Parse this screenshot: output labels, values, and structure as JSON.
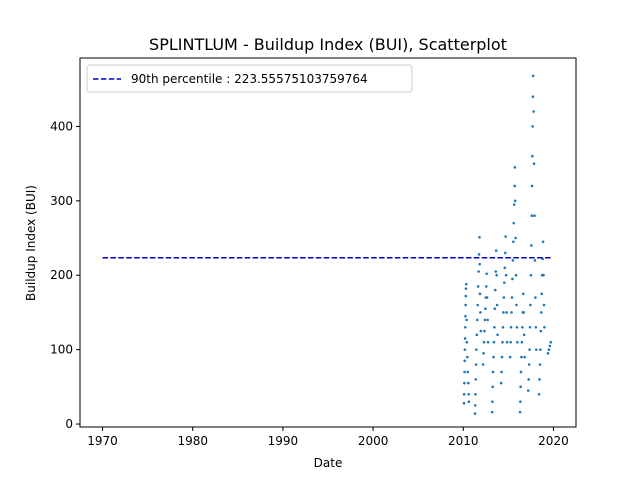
{
  "chart_data": {
    "type": "scatter",
    "title": "SPLINTLUM - Buildup Index (BUI), Scatterplot",
    "xlabel": "Date",
    "ylabel": "Buildup Index (BUI)",
    "xlim": [
      1967.5,
      2022.5
    ],
    "ylim": [
      -4,
      492
    ],
    "xticks": [
      1970,
      1980,
      1990,
      2000,
      2010,
      2020
    ],
    "yticks": [
      0,
      100,
      200,
      300,
      400
    ],
    "grid": false,
    "legend_position": "top-left",
    "colors": {
      "points": "#1f77b4",
      "reference_line": "#0000cc"
    },
    "reference_line": {
      "label": "90th percentile : 223.55575103759764",
      "value": 223.55575103759764,
      "x_range": [
        1970,
        2019.8
      ],
      "style": "dashed"
    },
    "series": [
      {
        "points": [
          [
            2010.08,
            28
          ],
          [
            2010.1,
            40
          ],
          [
            2010.12,
            55
          ],
          [
            2010.14,
            70
          ],
          [
            2010.16,
            85
          ],
          [
            2010.18,
            100
          ],
          [
            2010.2,
            115
          ],
          [
            2010.22,
            130
          ],
          [
            2010.24,
            145
          ],
          [
            2010.26,
            160
          ],
          [
            2010.28,
            172
          ],
          [
            2010.3,
            182
          ],
          [
            2010.33,
            188
          ],
          [
            2010.37,
            140
          ],
          [
            2010.4,
            110
          ],
          [
            2010.45,
            90
          ],
          [
            2010.5,
            70
          ],
          [
            2010.55,
            55
          ],
          [
            2010.6,
            40
          ],
          [
            2010.62,
            30
          ],
          [
            2011.3,
            14
          ],
          [
            2011.32,
            25
          ],
          [
            2011.35,
            40
          ],
          [
            2011.38,
            60
          ],
          [
            2011.42,
            80
          ],
          [
            2011.45,
            100
          ],
          [
            2011.5,
            120
          ],
          [
            2011.55,
            140
          ],
          [
            2011.6,
            160
          ],
          [
            2011.65,
            185
          ],
          [
            2011.7,
            205
          ],
          [
            2011.75,
            228
          ],
          [
            2011.8,
            251
          ],
          [
            2011.82,
            215
          ],
          [
            2011.85,
            175
          ],
          [
            2011.9,
            150
          ],
          [
            2011.95,
            125
          ],
          [
            2012.2,
            80
          ],
          [
            2012.25,
            95
          ],
          [
            2012.3,
            110
          ],
          [
            2012.35,
            125
          ],
          [
            2012.4,
            140
          ],
          [
            2012.45,
            155
          ],
          [
            2012.5,
            170
          ],
          [
            2012.55,
            185
          ],
          [
            2012.6,
            202
          ],
          [
            2012.65,
            170
          ],
          [
            2012.7,
            140
          ],
          [
            2012.75,
            110
          ],
          [
            2013.2,
            16
          ],
          [
            2013.23,
            30
          ],
          [
            2013.26,
            50
          ],
          [
            2013.3,
            70
          ],
          [
            2013.35,
            90
          ],
          [
            2013.4,
            110
          ],
          [
            2013.45,
            130
          ],
          [
            2013.5,
            155
          ],
          [
            2013.55,
            180
          ],
          [
            2013.6,
            205
          ],
          [
            2013.65,
            233
          ],
          [
            2013.7,
            200
          ],
          [
            2013.75,
            160
          ],
          [
            2013.8,
            120
          ],
          [
            2014.2,
            55
          ],
          [
            2014.25,
            70
          ],
          [
            2014.3,
            90
          ],
          [
            2014.35,
            110
          ],
          [
            2014.4,
            130
          ],
          [
            2014.45,
            150
          ],
          [
            2014.5,
            170
          ],
          [
            2014.55,
            190
          ],
          [
            2014.6,
            210
          ],
          [
            2014.65,
            230
          ],
          [
            2014.7,
            252
          ],
          [
            2014.75,
            200
          ],
          [
            2014.8,
            150
          ],
          [
            2014.85,
            110
          ],
          [
            2015.2,
            90
          ],
          [
            2015.25,
            110
          ],
          [
            2015.3,
            130
          ],
          [
            2015.35,
            150
          ],
          [
            2015.4,
            170
          ],
          [
            2015.45,
            195
          ],
          [
            2015.5,
            220
          ],
          [
            2015.55,
            245
          ],
          [
            2015.6,
            270
          ],
          [
            2015.65,
            295
          ],
          [
            2015.7,
            320
          ],
          [
            2015.72,
            345
          ],
          [
            2015.75,
            300
          ],
          [
            2015.8,
            250
          ],
          [
            2015.85,
            200
          ],
          [
            2015.9,
            160
          ],
          [
            2015.95,
            130
          ],
          [
            2016.0,
            110
          ],
          [
            2016.3,
            16
          ],
          [
            2016.33,
            30
          ],
          [
            2016.36,
            50
          ],
          [
            2016.4,
            70
          ],
          [
            2016.45,
            90
          ],
          [
            2016.5,
            110
          ],
          [
            2016.55,
            130
          ],
          [
            2016.6,
            150
          ],
          [
            2016.65,
            175
          ],
          [
            2016.7,
            150
          ],
          [
            2016.75,
            120
          ],
          [
            2016.8,
            90
          ],
          [
            2017.2,
            45
          ],
          [
            2017.25,
            60
          ],
          [
            2017.3,
            80
          ],
          [
            2017.35,
            100
          ],
          [
            2017.4,
            130
          ],
          [
            2017.45,
            160
          ],
          [
            2017.5,
            200
          ],
          [
            2017.55,
            240
          ],
          [
            2017.6,
            280
          ],
          [
            2017.63,
            320
          ],
          [
            2017.66,
            360
          ],
          [
            2017.69,
            400
          ],
          [
            2017.72,
            440
          ],
          [
            2017.75,
            468
          ],
          [
            2017.8,
            420
          ],
          [
            2017.85,
            350
          ],
          [
            2017.9,
            280
          ],
          [
            2017.95,
            220
          ],
          [
            2018.0,
            170
          ],
          [
            2018.05,
            130
          ],
          [
            2018.1,
            100
          ],
          [
            2018.4,
            40
          ],
          [
            2018.45,
            60
          ],
          [
            2018.5,
            80
          ],
          [
            2018.55,
            100
          ],
          [
            2018.6,
            125
          ],
          [
            2018.65,
            150
          ],
          [
            2018.7,
            175
          ],
          [
            2018.75,
            200
          ],
          [
            2018.8,
            222
          ],
          [
            2018.85,
            245
          ],
          [
            2018.9,
            200
          ],
          [
            2018.95,
            160
          ],
          [
            2019.0,
            130
          ],
          [
            2019.4,
            95
          ],
          [
            2019.5,
            100
          ],
          [
            2019.6,
            105
          ],
          [
            2019.7,
            110
          ]
        ]
      }
    ]
  }
}
